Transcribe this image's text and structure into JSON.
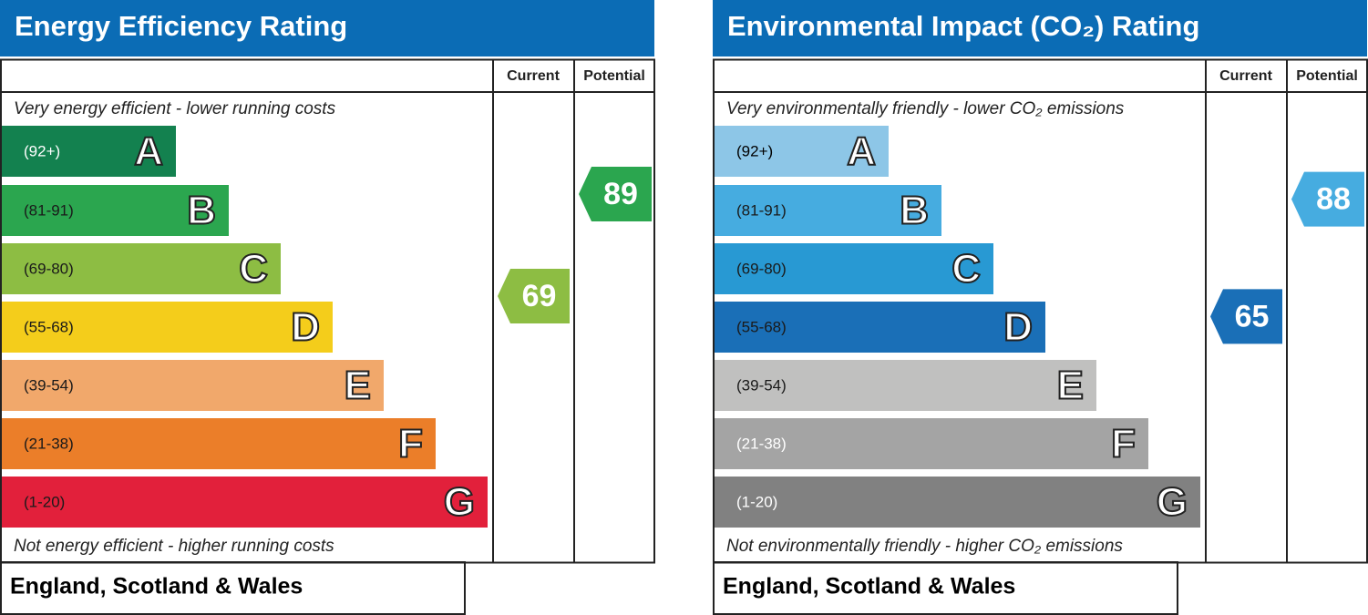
{
  "panels": [
    {
      "title": "Energy Efficiency Rating",
      "columns": [
        "Current",
        "Potential"
      ],
      "top_note": "Very energy efficient - lower running costs",
      "bottom_note": "Not energy efficient - higher running costs",
      "bands": [
        {
          "range": "(92+)",
          "letter": "A",
          "color": "#13814f",
          "label_color": "#ffffff"
        },
        {
          "range": "(81-91)",
          "letter": "B",
          "color": "#2ba64f",
          "label_color": "#1a1a1a"
        },
        {
          "range": "(69-80)",
          "letter": "C",
          "color": "#8dbd43",
          "label_color": "#1a1a1a"
        },
        {
          "range": "(55-68)",
          "letter": "D",
          "color": "#f4cd1b",
          "label_color": "#1a1a1a"
        },
        {
          "range": "(39-54)",
          "letter": "E",
          "color": "#f1a86b",
          "label_color": "#1a1a1a"
        },
        {
          "range": "(21-38)",
          "letter": "F",
          "color": "#eb7e29",
          "label_color": "#1a1a1a"
        },
        {
          "range": "(1-20)",
          "letter": "G",
          "color": "#e2203b",
          "label_color": "#1a1a1a"
        }
      ],
      "current": {
        "value": 69,
        "color": "#8dbd43"
      },
      "potential": {
        "value": 89,
        "color": "#2ba64f"
      },
      "region": "England, Scotland & Wales"
    },
    {
      "title": "Environmental Impact (CO₂) Rating",
      "columns": [
        "Current",
        "Potential"
      ],
      "top_note": "Very environmentally friendly - lower CO₂ emissions",
      "bottom_note": "Not environmentally friendly - higher CO₂ emissions",
      "bands": [
        {
          "range": "(92+)",
          "letter": "A",
          "color": "#8dc6e7",
          "label_color": "#000000"
        },
        {
          "range": "(81-91)",
          "letter": "B",
          "color": "#46ace0",
          "label_color": "#1a1a1a"
        },
        {
          "range": "(69-80)",
          "letter": "C",
          "color": "#2899d3",
          "label_color": "#1a1a1a"
        },
        {
          "range": "(55-68)",
          "letter": "D",
          "color": "#1a6fb7",
          "label_color": "#1a1a1a"
        },
        {
          "range": "(39-54)",
          "letter": "E",
          "color": "#c0c0bf",
          "label_color": "#1a1a1a"
        },
        {
          "range": "(21-38)",
          "letter": "F",
          "color": "#a4a4a4",
          "label_color": "#ffffff"
        },
        {
          "range": "(1-20)",
          "letter": "G",
          "color": "#818181",
          "label_color": "#ffffff"
        }
      ],
      "current": {
        "value": 65,
        "color": "#1a6fb7"
      },
      "potential": {
        "value": 88,
        "color": "#46ace0"
      },
      "region": "England, Scotland & Wales"
    }
  ]
}
